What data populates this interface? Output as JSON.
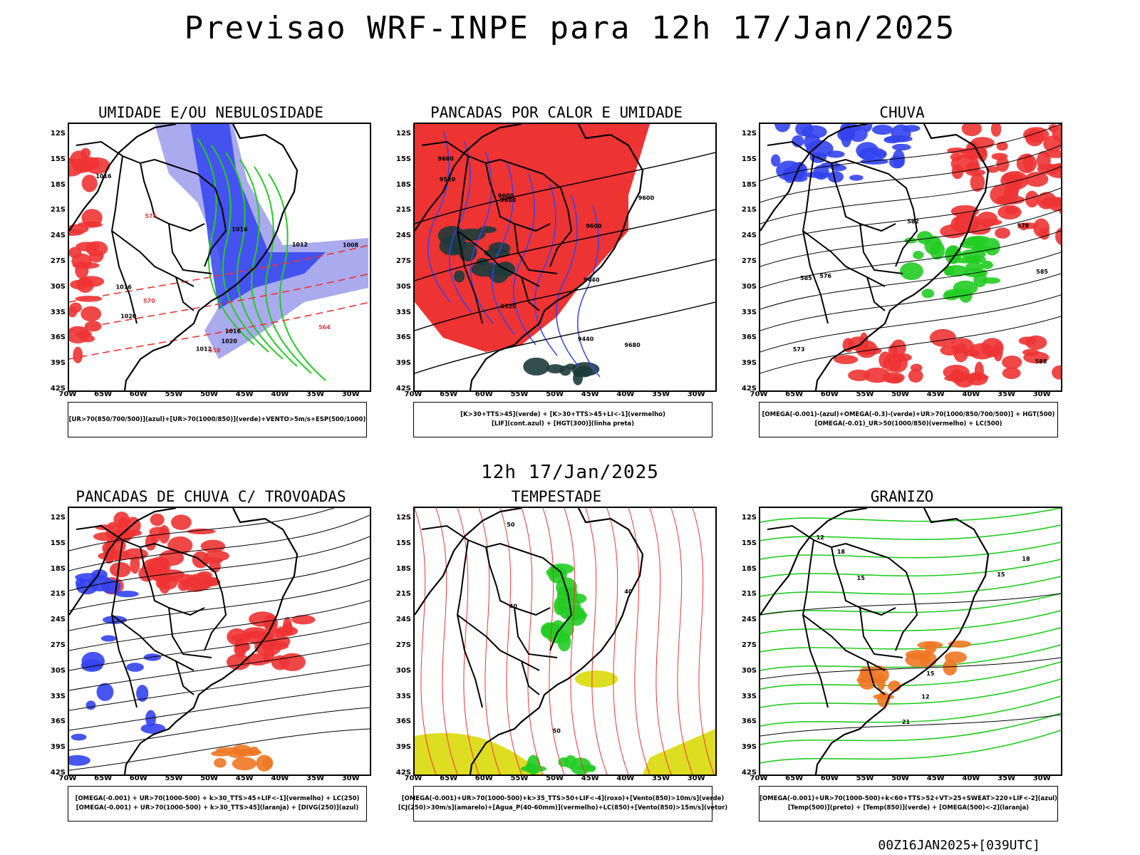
{
  "main_title": "Previsao WRF-INPE  para 12h 17/Jan/2025",
  "mid_title": "12h 17/Jan/2025",
  "footer": "00Z16JAN2025+[039UTC]",
  "axes": {
    "lat_labels": [
      "12S",
      "15S",
      "18S",
      "21S",
      "24S",
      "27S",
      "30S",
      "33S",
      "36S",
      "39S",
      "42S"
    ],
    "lon_labels": [
      "70W",
      "65W",
      "60W",
      "55W",
      "50W",
      "45W",
      "40W",
      "35W",
      "30W"
    ]
  },
  "colors": {
    "azul": "#3344ee",
    "lilas": "#aaaaee",
    "verde": "#22cc22",
    "vermelho": "#ee3333",
    "laranja": "#ee7722",
    "amarelo": "#dddd22",
    "escuro": "#1d3b3b"
  },
  "panels": [
    {
      "title": "UMIDADE E/OU NEBULOSIDADE",
      "legend": [
        "[UR>70(850/700/500)](azul)+[UR>70(1000/850)](verde)+VENTO>5m/s+ESP(500/1000)"
      ],
      "labels": [
        "1012",
        "1016",
        "1016",
        "1016",
        "1008",
        "1020",
        "1020",
        "1016",
        "1012",
        "576",
        "570",
        "564",
        "558"
      ]
    },
    {
      "title": "PANCADAS POR CALOR E UMIDADE",
      "legend": [
        "[K>30+TTS>45](verde) + [K>30+TTS>45+LI<-1](vermelho)",
        "[LIF](cont.azul) + [HGT(300)](linha preta)"
      ],
      "labels": [
        "9600",
        "9680",
        "9680",
        "9600",
        "9520",
        "9440",
        "9520",
        "9600",
        "9680",
        "9440"
      ]
    },
    {
      "title": "CHUVA",
      "legend": [
        "[OMEGA(-0.001)-(azul)+OMEGA(-0.3)-(verde)+UR>70(1000/850/700/500)] + HGT(500)",
        "[OMEGA(-0.01)_UR>50(1000/850)(vermelho) + LC(500)"
      ],
      "labels": [
        "585",
        "582",
        "579",
        "576",
        "573",
        "588",
        "585"
      ]
    },
    {
      "title": "PANCADAS DE CHUVA C/ TROVOADAS",
      "legend": [
        "[OMEGA(-0.001) + UR>70(1000-500) + k>30_TTS>45+LIF<-1](vermelho) + LC(250)",
        "[OMEGA(-0.001) + UR>70(1000-500) + k>30_TTS>45](laranja) + [DIVG(250)](azul)"
      ],
      "labels": []
    },
    {
      "title": "TEMPESTADE",
      "legend": [
        "[OMEGA(-0.001)+UR>70(1000-500)+k>35_TTS>50+LIF<-4](roxo)+[Vento(850)>10m/s](verde)",
        "[CJ(250)>30m/s](amarelo)+[Agua_P(40-60mm)](vermelho)+LC(850)+[Vento(850)>15m/s](vetor)"
      ],
      "labels": [
        "40",
        "50",
        "40",
        "50"
      ]
    },
    {
      "title": "GRANIZO",
      "legend": [
        "[OMEGA(-0.001)+UR>70(1000-500)+k<60+TTS>52+VT>25+SWEAT>220+LIF<-2](azul)",
        "[Temp(500)](preto) + [Temp(850)](verde) + [OMEGA(500)<-2](laranja)"
      ],
      "labels": [
        "15",
        "18",
        "21",
        "15",
        "12",
        "15",
        "18",
        "12"
      ]
    }
  ]
}
